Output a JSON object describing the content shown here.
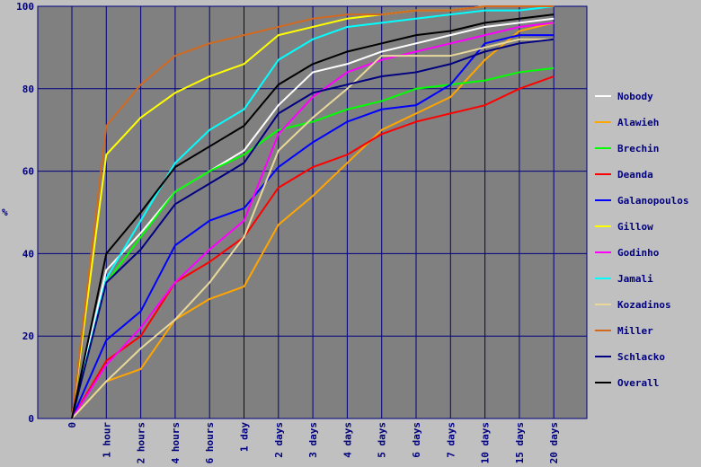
{
  "chart_data": {
    "type": "line",
    "ylabel": "%",
    "xlabel": "",
    "ylim": [
      0,
      100
    ],
    "yticks": [
      0,
      20,
      40,
      60,
      80,
      100
    ],
    "x": [
      "0",
      "1 hour",
      "2 hours",
      "4 hours",
      "6 hours",
      "1 day",
      "2 days",
      "3 days",
      "4 days",
      "5 days",
      "6 days",
      "7 days",
      "10 days",
      "15 days",
      "20 days"
    ],
    "grid": true,
    "legend_position": "right",
    "colors": {
      "background": "#c0c0c0",
      "plot_background": "#808080",
      "grid": "#00007f",
      "text": "#00007f"
    },
    "series": [
      {
        "name": "Nobody",
        "color": "#ffffff",
        "values": [
          0,
          36,
          45,
          55,
          60,
          65,
          76,
          84,
          86,
          89,
          91,
          93,
          95,
          96,
          97
        ]
      },
      {
        "name": "Alawieh",
        "color": "#ffa500",
        "values": [
          0,
          9,
          12,
          24,
          29,
          32,
          47,
          54,
          62,
          70,
          74,
          78,
          87,
          94,
          96
        ]
      },
      {
        "name": "Brechin",
        "color": "#00ff00",
        "values": [
          0,
          33,
          44,
          55,
          60,
          64,
          70,
          72,
          75,
          77,
          80,
          81,
          82,
          84,
          85
        ]
      },
      {
        "name": "Deanda",
        "color": "#ff0000",
        "values": [
          0,
          14,
          20,
          33,
          38,
          44,
          56,
          61,
          64,
          69,
          72,
          74,
          76,
          80,
          83
        ]
      },
      {
        "name": "Galanopoulos",
        "color": "#0000ff",
        "values": [
          0,
          19,
          26,
          42,
          48,
          51,
          61,
          67,
          72,
          75,
          76,
          81,
          91,
          93,
          93
        ]
      },
      {
        "name": "Gillow",
        "color": "#ffff00",
        "values": [
          0,
          64,
          73,
          79,
          83,
          86,
          93,
          95,
          97,
          98,
          99,
          99,
          100,
          100,
          100
        ]
      },
      {
        "name": "Godinho",
        "color": "#ff00ff",
        "values": [
          0,
          13,
          22,
          33,
          41,
          48,
          69,
          78,
          84,
          87,
          89,
          91,
          93,
          95,
          96
        ]
      },
      {
        "name": "Jamali",
        "color": "#00ffff",
        "values": [
          0,
          34,
          48,
          62,
          70,
          75,
          87,
          92,
          95,
          96,
          97,
          98,
          99,
          99,
          100
        ]
      },
      {
        "name": "Kozadinos",
        "color": "#e8d89a",
        "values": [
          0,
          9,
          17,
          24,
          33,
          44,
          65,
          73,
          80,
          88,
          88,
          88,
          90,
          92,
          92
        ]
      },
      {
        "name": "Miller",
        "color": "#d2691e",
        "values": [
          0,
          71,
          81,
          88,
          91,
          93,
          95,
          97,
          98,
          98,
          99,
          99,
          100,
          100,
          100
        ]
      },
      {
        "name": "Schlacko",
        "color": "#000080",
        "values": [
          0,
          33,
          41,
          52,
          57,
          62,
          74,
          79,
          81,
          83,
          84,
          86,
          89,
          91,
          92
        ]
      },
      {
        "name": "Overall",
        "color": "#000000",
        "values": [
          0,
          40,
          50,
          61,
          66,
          71,
          81,
          86,
          89,
          91,
          93,
          94,
          96,
          97,
          98
        ]
      }
    ]
  }
}
